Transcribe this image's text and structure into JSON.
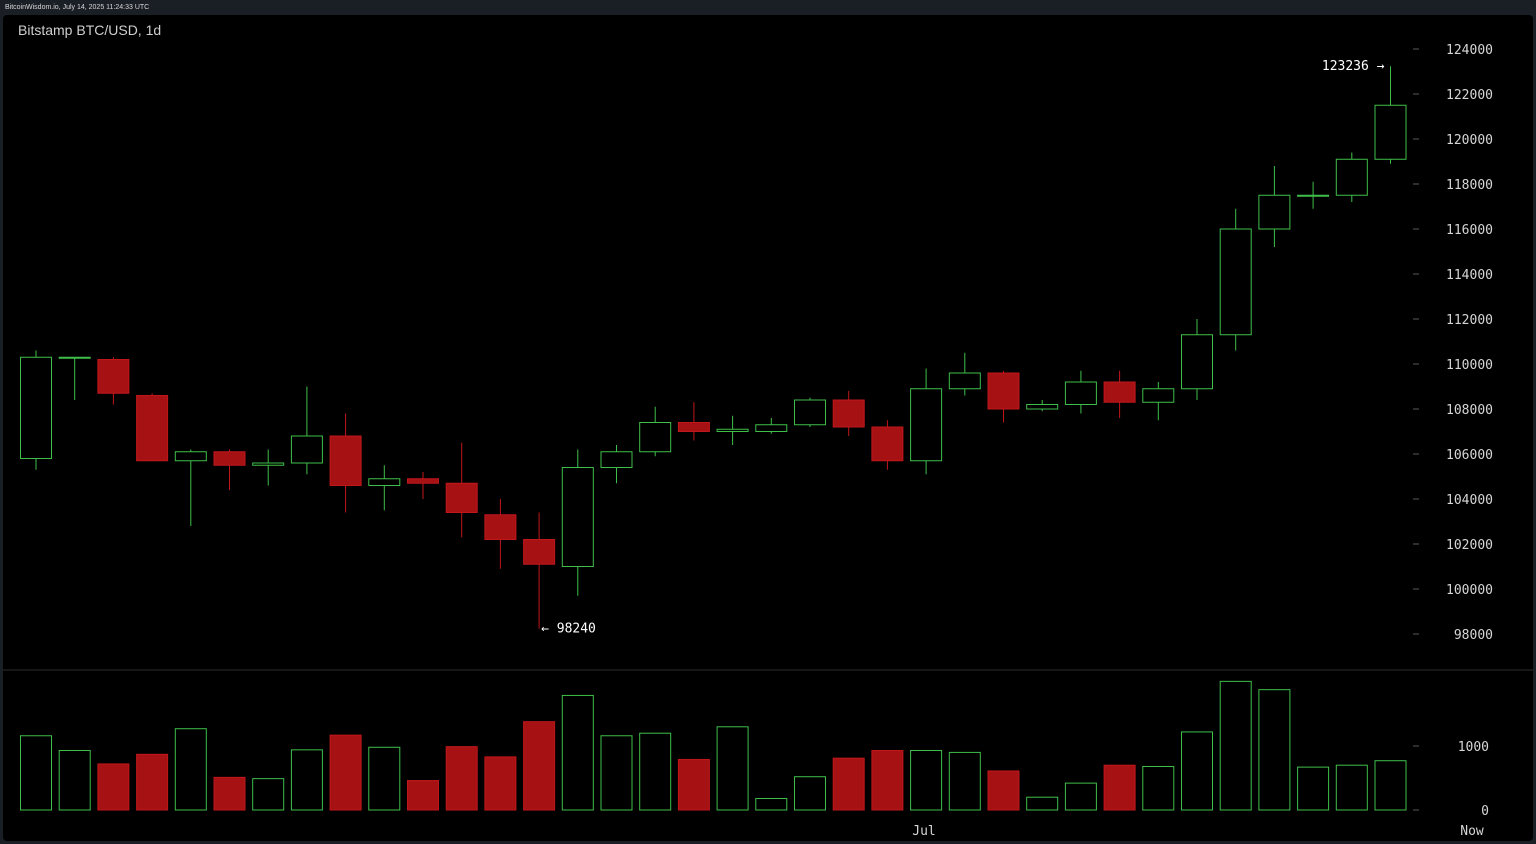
{
  "header": {
    "source_line": "BitcoinWisdom.io, July 14, 2025 11:24:33 UTC"
  },
  "chart_title": "Bitstamp BTC/USD, 1d",
  "colors": {
    "up": "#3fbf4a",
    "down": "#c0171a",
    "down_fill": "#a61214",
    "background": "#000000",
    "text": "#d6d6d6"
  },
  "chart_data": {
    "type": "candlestick",
    "title": "Bitstamp BTC/USD, 1d",
    "price_axis": {
      "ticks": [
        98000,
        100000,
        102000,
        104000,
        106000,
        108000,
        110000,
        112000,
        114000,
        116000,
        118000,
        120000,
        122000,
        124000
      ],
      "position": "right"
    },
    "volume_axis": {
      "ticks": [
        0,
        1000
      ],
      "position": "right"
    },
    "x_axis": {
      "labels": [
        "Jul",
        "Now"
      ]
    },
    "annotations": [
      {
        "label": "123236 →",
        "value": 123236,
        "kind": "high"
      },
      {
        "label": "← 98240",
        "value": 98240,
        "kind": "low"
      }
    ],
    "candles": [
      {
        "o": 105800,
        "h": 110600,
        "l": 105300,
        "c": 110300,
        "v": 1160
      },
      {
        "o": 110300,
        "h": 110300,
        "l": 108400,
        "c": 110300,
        "v": 930
      },
      {
        "o": 110200,
        "h": 110300,
        "l": 108200,
        "c": 108700,
        "v": 720
      },
      {
        "o": 108600,
        "h": 108700,
        "l": 105700,
        "c": 105700,
        "v": 870
      },
      {
        "o": 105700,
        "h": 106200,
        "l": 102800,
        "c": 106100,
        "v": 1270
      },
      {
        "o": 106100,
        "h": 106200,
        "l": 104400,
        "c": 105500,
        "v": 510
      },
      {
        "o": 105500,
        "h": 106200,
        "l": 104600,
        "c": 105600,
        "v": 490
      },
      {
        "o": 105600,
        "h": 109000,
        "l": 105100,
        "c": 106800,
        "v": 940
      },
      {
        "o": 106800,
        "h": 107800,
        "l": 103400,
        "c": 104600,
        "v": 1170
      },
      {
        "o": 104600,
        "h": 105500,
        "l": 103500,
        "c": 104900,
        "v": 980
      },
      {
        "o": 104900,
        "h": 105200,
        "l": 104000,
        "c": 104700,
        "v": 460
      },
      {
        "o": 104700,
        "h": 106500,
        "l": 102300,
        "c": 103400,
        "v": 990
      },
      {
        "o": 103300,
        "h": 104000,
        "l": 100900,
        "c": 102200,
        "v": 830
      },
      {
        "o": 102200,
        "h": 103400,
        "l": 98240,
        "c": 101100,
        "v": 1380
      },
      {
        "o": 101000,
        "h": 106200,
        "l": 99700,
        "c": 105400,
        "v": 1790
      },
      {
        "o": 105400,
        "h": 106400,
        "l": 104700,
        "c": 106100,
        "v": 1160
      },
      {
        "o": 106100,
        "h": 108100,
        "l": 105900,
        "c": 107400,
        "v": 1200
      },
      {
        "o": 107400,
        "h": 108300,
        "l": 106600,
        "c": 107000,
        "v": 790
      },
      {
        "o": 107000,
        "h": 107700,
        "l": 106400,
        "c": 107100,
        "v": 1300
      },
      {
        "o": 107000,
        "h": 107600,
        "l": 106900,
        "c": 107300,
        "v": 180
      },
      {
        "o": 107300,
        "h": 108500,
        "l": 107200,
        "c": 108400,
        "v": 520
      },
      {
        "o": 108400,
        "h": 108800,
        "l": 106800,
        "c": 107200,
        "v": 810
      },
      {
        "o": 107200,
        "h": 107500,
        "l": 105300,
        "c": 105700,
        "v": 930
      },
      {
        "o": 105700,
        "h": 109800,
        "l": 105100,
        "c": 108900,
        "v": 930
      },
      {
        "o": 108900,
        "h": 110500,
        "l": 108600,
        "c": 109600,
        "v": 900
      },
      {
        "o": 109600,
        "h": 109700,
        "l": 107400,
        "c": 108000,
        "v": 610
      },
      {
        "o": 108000,
        "h": 108400,
        "l": 107900,
        "c": 108200,
        "v": 200
      },
      {
        "o": 108200,
        "h": 109700,
        "l": 107800,
        "c": 109200,
        "v": 420
      },
      {
        "o": 109200,
        "h": 109700,
        "l": 107600,
        "c": 108300,
        "v": 700
      },
      {
        "o": 108300,
        "h": 109200,
        "l": 107500,
        "c": 108900,
        "v": 680
      },
      {
        "o": 108900,
        "h": 112000,
        "l": 108400,
        "c": 111300,
        "v": 1220
      },
      {
        "o": 111300,
        "h": 116900,
        "l": 110600,
        "c": 116000,
        "v": 2010
      },
      {
        "o": 116000,
        "h": 118800,
        "l": 115200,
        "c": 117500,
        "v": 1880
      },
      {
        "o": 117500,
        "h": 118100,
        "l": 116900,
        "c": 117500,
        "v": 670
      },
      {
        "o": 117500,
        "h": 119400,
        "l": 117200,
        "c": 119100,
        "v": 700
      },
      {
        "o": 119100,
        "h": 123236,
        "l": 118900,
        "c": 121500,
        "v": 770
      }
    ]
  }
}
